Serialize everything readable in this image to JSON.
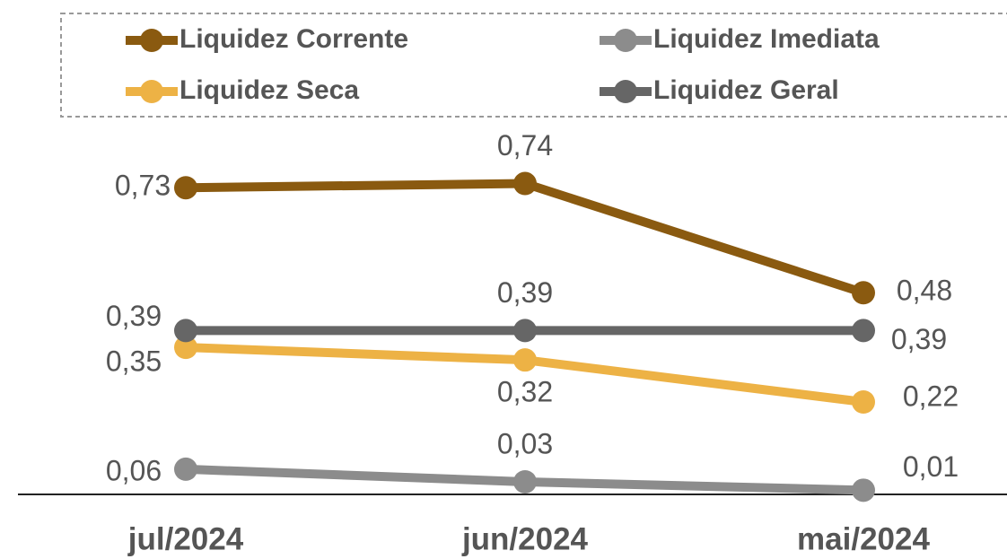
{
  "chart_data": {
    "type": "line",
    "categories": [
      "jul/2024",
      "jun/2024",
      "mai/2024"
    ],
    "ylim": [
      0,
      0.88
    ],
    "series": [
      {
        "name": "Liquidez Corrente",
        "color": "#8a5a10",
        "values": [
          0.73,
          0.74,
          0.48
        ],
        "value_labels": [
          "0,73",
          "0,74",
          "0,48"
        ]
      },
      {
        "name": "Liquidez Imediata",
        "color": "#8c8c8c",
        "values": [
          0.06,
          0.03,
          0.01
        ],
        "value_labels": [
          "0,06",
          "0,03",
          "0,01"
        ]
      },
      {
        "name": "Liquidez Seca",
        "color": "#edb245",
        "values": [
          0.35,
          0.32,
          0.22
        ],
        "value_labels": [
          "0,35",
          "0,32",
          "0,22"
        ]
      },
      {
        "name": "Liquidez Geral",
        "color": "#666666",
        "values": [
          0.39,
          0.39,
          0.39
        ],
        "value_labels": [
          "0,39",
          "0,39",
          "0,39"
        ]
      }
    ]
  }
}
